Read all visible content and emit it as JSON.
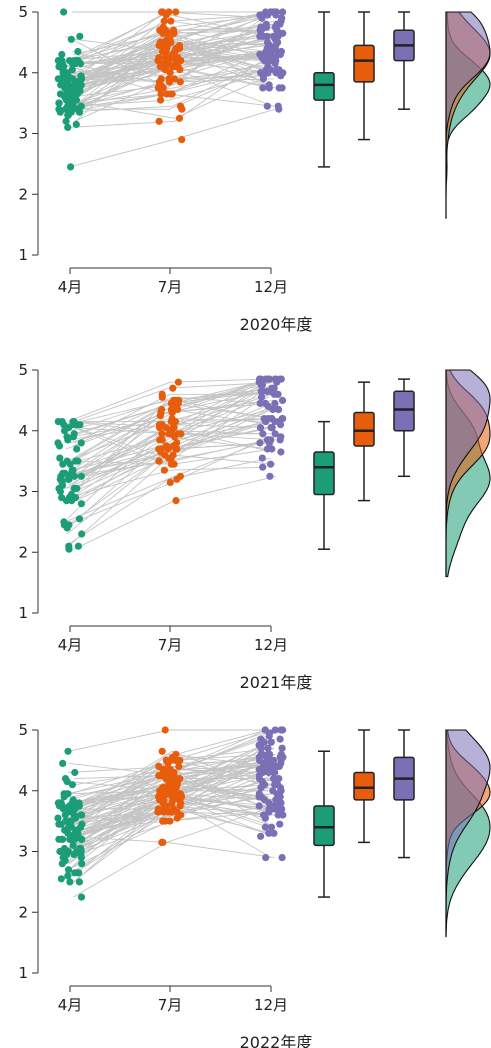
{
  "colors": {
    "apr": "#1b9e77",
    "jul": "#e85d0c",
    "dec": "#7b6fb6",
    "line": "#c4c4c4",
    "box_stroke": "#222222"
  },
  "chart_data": [
    {
      "type": "scatter",
      "title": "2020年度",
      "categories": [
        "4月",
        "7月",
        "12月"
      ],
      "ylim": [
        1,
        5
      ],
      "yticks": [
        1,
        2,
        3,
        4,
        5
      ],
      "series_names": [],
      "boxplots": [
        {
          "category": "4月",
          "min": 2.45,
          "q1": 3.55,
          "median": 3.8,
          "q3": 4.0,
          "max": 5.0
        },
        {
          "category": "7月",
          "min": 2.9,
          "q1": 3.85,
          "median": 4.2,
          "q3": 4.45,
          "max": 5.0
        },
        {
          "category": "12月",
          "min": 3.4,
          "q1": 4.2,
          "median": 4.45,
          "q3": 4.7,
          "max": 5.0
        }
      ],
      "n_subjects": 90
    },
    {
      "type": "scatter",
      "title": "2021年度",
      "categories": [
        "4月",
        "7月",
        "12月"
      ],
      "ylim": [
        1,
        5
      ],
      "yticks": [
        1,
        2,
        3,
        4,
        5
      ],
      "series_names": [],
      "boxplots": [
        {
          "category": "4月",
          "min": 2.05,
          "q1": 2.95,
          "median": 3.4,
          "q3": 3.65,
          "max": 4.15
        },
        {
          "category": "7月",
          "min": 2.85,
          "q1": 3.75,
          "median": 4.0,
          "q3": 4.3,
          "max": 4.8
        },
        {
          "category": "12月",
          "min": 3.25,
          "q1": 4.0,
          "median": 4.35,
          "q3": 4.65,
          "max": 4.85
        }
      ],
      "n_subjects": 60
    },
    {
      "type": "scatter",
      "title": "2022年度",
      "categories": [
        "4月",
        "7月",
        "12月"
      ],
      "ylim": [
        1,
        5
      ],
      "yticks": [
        1,
        2,
        3,
        4,
        5
      ],
      "series_names": [],
      "boxplots": [
        {
          "category": "4月",
          "min": 2.25,
          "q1": 3.1,
          "median": 3.4,
          "q3": 3.75,
          "max": 4.65
        },
        {
          "category": "7月",
          "min": 3.15,
          "q1": 3.85,
          "median": 4.05,
          "q3": 4.3,
          "max": 5.0
        },
        {
          "category": "12月",
          "min": 2.9,
          "q1": 3.85,
          "median": 4.2,
          "q3": 4.55,
          "max": 5.0
        }
      ],
      "n_subjects": 90
    }
  ]
}
